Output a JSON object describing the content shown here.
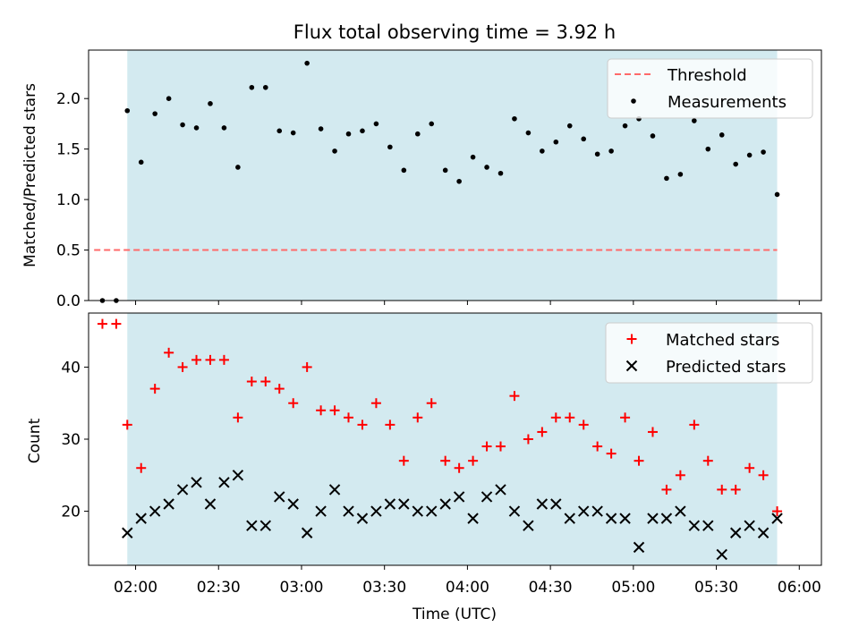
{
  "chart_data": [
    {
      "type": "scatter",
      "title": "Flux total observing time = 3.92 h",
      "xlabel": "",
      "ylabel": "Matched/Predicted stars",
      "x_axis": "time (UTC)",
      "xlim": [
        "01:43",
        "06:08"
      ],
      "ylim": [
        0,
        2.48
      ],
      "yticks": [
        0.0,
        0.5,
        1.0,
        1.5,
        2.0
      ],
      "ytick_labels": [
        "0.0",
        "0.5",
        "1.0",
        "1.5",
        "2.0"
      ],
      "observing_window": [
        "01:57",
        "05:52"
      ],
      "grid": false,
      "legend": {
        "placement": "top-right",
        "entries": [
          "Threshold",
          "Measurements"
        ]
      },
      "threshold": {
        "name": "Threshold",
        "value": 0.5,
        "x_start": "01:45",
        "x_end": "05:52",
        "color": "#ff6a6a"
      },
      "series": [
        {
          "name": "Measurements",
          "color": "#000000",
          "x": [
            "01:48",
            "01:53",
            "01:57",
            "02:02",
            "02:07",
            "02:12",
            "02:17",
            "02:22",
            "02:27",
            "02:32",
            "02:37",
            "02:42",
            "02:47",
            "02:52",
            "02:57",
            "03:02",
            "03:07",
            "03:12",
            "03:17",
            "03:22",
            "03:27",
            "03:32",
            "03:37",
            "03:42",
            "03:47",
            "03:52",
            "03:57",
            "04:02",
            "04:07",
            "04:12",
            "04:17",
            "04:22",
            "04:27",
            "04:32",
            "04:37",
            "04:42",
            "04:47",
            "04:52",
            "04:57",
            "05:02",
            "05:07",
            "05:12",
            "05:17",
            "05:22",
            "05:27",
            "05:32",
            "05:37",
            "05:42",
            "05:47",
            "05:52"
          ],
          "y": [
            0.0,
            0.0,
            1.88,
            1.37,
            1.85,
            2.0,
            1.74,
            1.71,
            1.95,
            1.71,
            1.32,
            2.11,
            2.11,
            1.68,
            1.66,
            2.35,
            1.7,
            1.48,
            1.65,
            1.68,
            1.75,
            1.52,
            1.29,
            1.65,
            1.75,
            1.29,
            1.18,
            1.42,
            1.32,
            1.26,
            1.8,
            1.66,
            1.48,
            1.57,
            1.73,
            1.6,
            1.45,
            1.48,
            1.73,
            1.8,
            1.63,
            1.21,
            1.25,
            1.78,
            1.5,
            1.64,
            1.35,
            1.44,
            1.47,
            1.05
          ]
        }
      ]
    },
    {
      "type": "scatter",
      "title": "",
      "xlabel": "Time (UTC)",
      "ylabel": "Count",
      "x_axis": "time (UTC)",
      "xlim": [
        "01:43",
        "06:08"
      ],
      "ylim": [
        12.5,
        47.5
      ],
      "yticks": [
        20,
        30,
        40
      ],
      "ytick_labels": [
        "20",
        "30",
        "40"
      ],
      "xticks": [
        "02:00",
        "02:30",
        "03:00",
        "03:30",
        "04:00",
        "04:30",
        "05:00",
        "05:30",
        "06:00"
      ],
      "xtick_labels": [
        "02:00",
        "02:30",
        "03:00",
        "03:30",
        "04:00",
        "04:30",
        "05:00",
        "05:30",
        "06:00"
      ],
      "observing_window": [
        "01:57",
        "05:52"
      ],
      "grid": false,
      "legend": {
        "placement": "top-right",
        "entries": [
          "Matched stars",
          "Predicted stars"
        ]
      },
      "series": [
        {
          "name": "Matched stars",
          "marker": "plus",
          "color": "#ff0000",
          "x": [
            "01:48",
            "01:53",
            "01:57",
            "02:02",
            "02:07",
            "02:12",
            "02:17",
            "02:22",
            "02:27",
            "02:32",
            "02:37",
            "02:42",
            "02:47",
            "02:52",
            "02:57",
            "03:02",
            "03:07",
            "03:12",
            "03:17",
            "03:22",
            "03:27",
            "03:32",
            "03:37",
            "03:42",
            "03:47",
            "03:52",
            "03:57",
            "04:02",
            "04:07",
            "04:12",
            "04:17",
            "04:22",
            "04:27",
            "04:32",
            "04:37",
            "04:42",
            "04:47",
            "04:52",
            "04:57",
            "05:02",
            "05:07",
            "05:12",
            "05:17",
            "05:22",
            "05:27",
            "05:32",
            "05:37",
            "05:42",
            "05:47",
            "05:52"
          ],
          "y": [
            46,
            46,
            32,
            26,
            37,
            42,
            40,
            41,
            41,
            41,
            33,
            38,
            38,
            37,
            35,
            40,
            34,
            34,
            33,
            32,
            35,
            32,
            27,
            33,
            35,
            27,
            26,
            27,
            29,
            29,
            36,
            30,
            31,
            33,
            33,
            32,
            29,
            28,
            33,
            27,
            31,
            23,
            25,
            32,
            27,
            23,
            23,
            26,
            25,
            20
          ]
        },
        {
          "name": "Predicted stars",
          "marker": "x",
          "color": "#000000",
          "x": [
            "01:57",
            "02:02",
            "02:07",
            "02:12",
            "02:17",
            "02:22",
            "02:27",
            "02:32",
            "02:37",
            "02:42",
            "02:47",
            "02:52",
            "02:57",
            "03:02",
            "03:07",
            "03:12",
            "03:17",
            "03:22",
            "03:27",
            "03:32",
            "03:37",
            "03:42",
            "03:47",
            "03:52",
            "03:57",
            "04:02",
            "04:07",
            "04:12",
            "04:17",
            "04:22",
            "04:27",
            "04:32",
            "04:37",
            "04:42",
            "04:47",
            "04:52",
            "04:57",
            "05:02",
            "05:07",
            "05:12",
            "05:17",
            "05:22",
            "05:27",
            "05:32",
            "05:37",
            "05:42",
            "05:47",
            "05:52"
          ],
          "y": [
            17,
            19,
            20,
            21,
            23,
            24,
            21,
            24,
            25,
            18,
            18,
            22,
            21,
            17,
            20,
            23,
            20,
            19,
            20,
            21,
            21,
            20,
            20,
            21,
            22,
            19,
            22,
            23,
            20,
            18,
            21,
            21,
            19,
            20,
            20,
            19,
            19,
            15,
            19,
            19,
            20,
            18,
            18,
            14,
            17,
            18,
            17,
            19
          ]
        }
      ]
    }
  ]
}
